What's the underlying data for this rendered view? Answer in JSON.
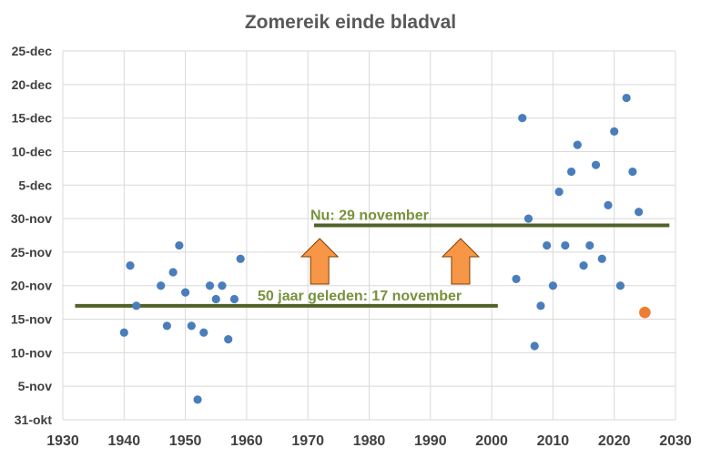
{
  "chart_data": {
    "type": "scatter",
    "title": "Zomereik einde bladval",
    "xlim": [
      1930,
      2030
    ],
    "x_ticks": [
      "1930",
      "1940",
      "1950",
      "1960",
      "1970",
      "1980",
      "1990",
      "2000",
      "2010",
      "2020",
      "2030"
    ],
    "ylim": [
      "31-okt",
      "25-dec"
    ],
    "y_ticks": [
      "31-okt",
      "5-nov",
      "10-nov",
      "15-nov",
      "20-nov",
      "25-nov",
      "30-nov",
      "5-dec",
      "10-dec",
      "15-dec",
      "20-dec",
      "25-dec"
    ],
    "grid": true,
    "colors": {
      "points": "#4a7ebb",
      "highlight": "#ed7d31",
      "lines": "#4f6228",
      "annotation_text": "#76923c",
      "arrows": "#f79646"
    },
    "points": [
      {
        "x": 1940,
        "y": "13-nov"
      },
      {
        "x": 1941,
        "y": "23-nov"
      },
      {
        "x": 1942,
        "y": "17-nov"
      },
      {
        "x": 1946,
        "y": "20-nov"
      },
      {
        "x": 1947,
        "y": "14-nov"
      },
      {
        "x": 1948,
        "y": "22-nov"
      },
      {
        "x": 1949,
        "y": "26-nov"
      },
      {
        "x": 1950,
        "y": "19-nov"
      },
      {
        "x": 1951,
        "y": "14-nov"
      },
      {
        "x": 1952,
        "y": "3-nov"
      },
      {
        "x": 1953,
        "y": "13-nov"
      },
      {
        "x": 1954,
        "y": "20-nov"
      },
      {
        "x": 1955,
        "y": "18-nov"
      },
      {
        "x": 1956,
        "y": "20-nov"
      },
      {
        "x": 1957,
        "y": "12-nov"
      },
      {
        "x": 1958,
        "y": "18-nov"
      },
      {
        "x": 1959,
        "y": "24-nov"
      },
      {
        "x": 2004,
        "y": "21-nov"
      },
      {
        "x": 2005,
        "y": "15-dec"
      },
      {
        "x": 2006,
        "y": "30-nov"
      },
      {
        "x": 2007,
        "y": "11-nov"
      },
      {
        "x": 2008,
        "y": "17-nov"
      },
      {
        "x": 2009,
        "y": "26-nov"
      },
      {
        "x": 2010,
        "y": "20-nov"
      },
      {
        "x": 2011,
        "y": "4-dec"
      },
      {
        "x": 2012,
        "y": "26-nov"
      },
      {
        "x": 2013,
        "y": "7-dec"
      },
      {
        "x": 2014,
        "y": "11-dec"
      },
      {
        "x": 2015,
        "y": "23-nov"
      },
      {
        "x": 2016,
        "y": "26-nov"
      },
      {
        "x": 2017,
        "y": "8-dec"
      },
      {
        "x": 2018,
        "y": "24-nov"
      },
      {
        "x": 2019,
        "y": "2-dec"
      },
      {
        "x": 2020,
        "y": "13-dec"
      },
      {
        "x": 2021,
        "y": "20-nov"
      },
      {
        "x": 2022,
        "y": "18-dec"
      },
      {
        "x": 2023,
        "y": "7-dec"
      },
      {
        "x": 2024,
        "y": "1-dec"
      }
    ],
    "highlight_points": [
      {
        "x": 2025,
        "y": "16-nov"
      }
    ],
    "reference_lines": [
      {
        "label": "50 jaar geleden: 17 november",
        "y": "17-nov",
        "x_from": 1932,
        "x_to": 2001
      },
      {
        "label": "Nu: 29 november",
        "y": "29-nov",
        "x_from": 1971,
        "x_to": 2029
      }
    ],
    "arrows": [
      {
        "x": 1972
      },
      {
        "x": 1995
      }
    ]
  }
}
